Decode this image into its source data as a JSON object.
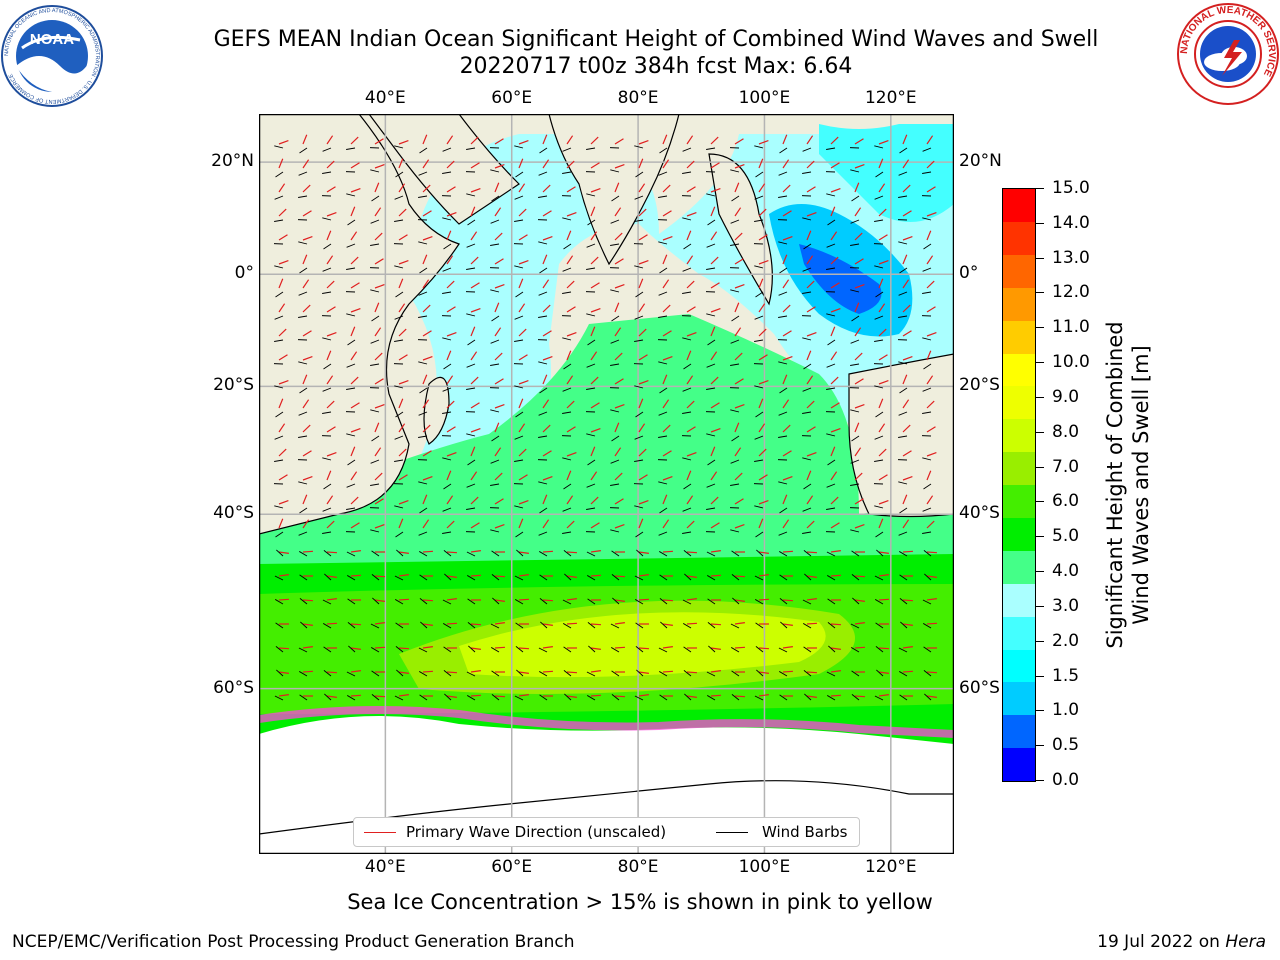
{
  "header": {
    "title_line1": "GEFS MEAN Indian Ocean Significant Height of Combined Wind Waves and Swell",
    "title_line2": "20220717 t00z 384h fcst   Max: 6.64"
  },
  "logos": {
    "noaa": {
      "text": "NOAA",
      "ring_text": "NATIONAL OCEANIC AND ATMOSPHERIC ADMINISTRATION · U.S. DEPARTMENT OF COMMERCE",
      "color": "#1f4e9c"
    },
    "nws": {
      "ring_text": "NATIONAL WEATHER SERVICE",
      "color": "#d42020"
    }
  },
  "map": {
    "lon_ticks": [
      "40°E",
      "60°E",
      "80°E",
      "100°E",
      "120°E"
    ],
    "lat_ticks": [
      "20°N",
      "0°",
      "20°S",
      "40°S",
      "60°S"
    ],
    "lon_values": [
      40,
      60,
      80,
      100,
      120
    ],
    "lat_values": [
      20,
      0,
      -20,
      -40,
      -60
    ],
    "extent": {
      "lon_min": 20,
      "lon_max": 130,
      "lat_min": -72,
      "lat_max": 28
    },
    "colors": {
      "land": "#efeedd",
      "ice": "#ffffff",
      "grid": "#b4b4b4",
      "wave_arrow": "#e02020",
      "barb": "#000000"
    }
  },
  "colorbar": {
    "title_line1": "Significant Height of Combined",
    "title_line2": "Wind Waves and Swell [m]",
    "labels": [
      "15.0",
      "14.0",
      "13.0",
      "12.0",
      "11.0",
      "10.0",
      "9.0",
      "8.0",
      "7.0",
      "6.0",
      "5.0",
      "4.0",
      "3.0",
      "2.0",
      "1.5",
      "1.0",
      "0.5",
      "0.0"
    ],
    "colors": [
      "#0000ff",
      "#0066ff",
      "#00ccff",
      "#00ffff",
      "#44ffff",
      "#aaffff",
      "#44ff88",
      "#00ee00",
      "#44ee00",
      "#99ee00",
      "#ccff00",
      "#eeff00",
      "#ffff00",
      "#ffcc00",
      "#ff9900",
      "#ff6600",
      "#ff3300",
      "#ff0000"
    ]
  },
  "legend": {
    "wave_direction": "Primary Wave Direction (unscaled)",
    "wind_barbs": "Wind Barbs"
  },
  "subtitle": "Sea Ice Concentration > 15% is shown in pink to yellow",
  "footer": {
    "left": "NCEP/EMC/Verification Post Processing Product Generation Branch",
    "right_prefix": "19 Jul 2022 on ",
    "right_host": "Hera"
  }
}
